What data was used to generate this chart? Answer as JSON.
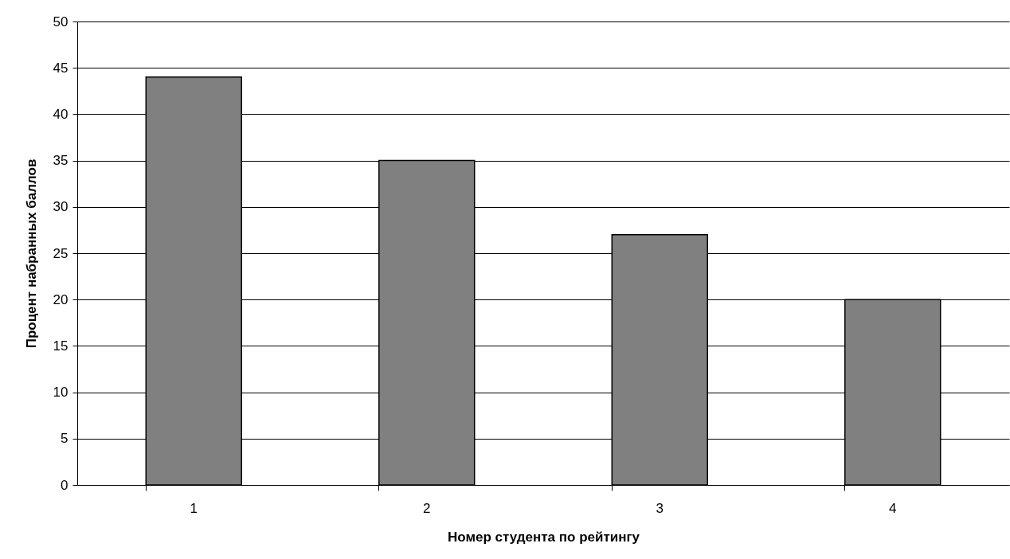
{
  "chart_data": {
    "type": "bar",
    "xlabel": "Номер студента по рейтингу",
    "ylabel": "Процент набранных баллов",
    "categories": [
      "1",
      "2",
      "3",
      "4"
    ],
    "values": [
      44,
      35,
      27,
      20
    ],
    "color": "#808080",
    "ylim": [
      0,
      50
    ],
    "yticks": [
      0,
      5,
      10,
      15,
      20,
      25,
      30,
      35,
      40,
      45,
      50
    ],
    "grid": "y"
  }
}
